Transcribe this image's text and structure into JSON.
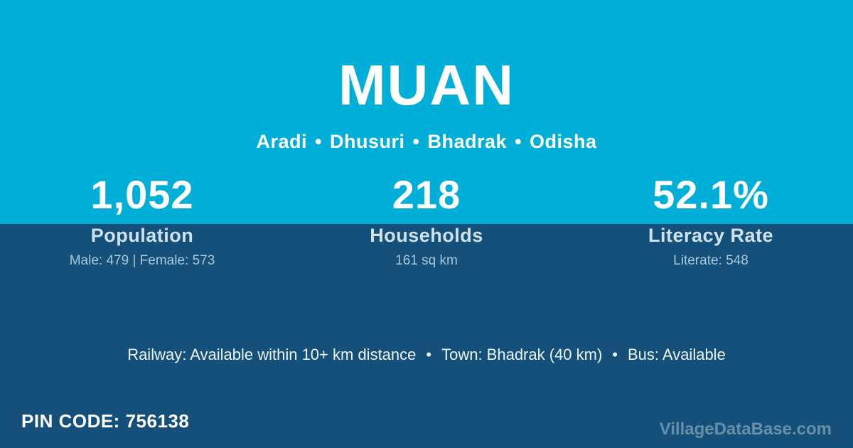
{
  "header": {
    "title": "MUAN",
    "location_parts": [
      "Aradi",
      "Dhusuri",
      "Bhadrak",
      "Odisha"
    ],
    "separator": "•"
  },
  "stats": [
    {
      "value": "1,052",
      "label": "Population",
      "detail": "Male: 479 | Female: 573"
    },
    {
      "value": "218",
      "label": "Households",
      "detail": "161 sq km"
    },
    {
      "value": "52.1%",
      "label": "Literacy Rate",
      "detail": "Literate: 548"
    }
  ],
  "transport": {
    "items": [
      "Railway: Available within 10+ km distance",
      "Town: Bhadrak (40 km)",
      "Bus: Available"
    ],
    "separator": "•"
  },
  "footer": {
    "pin_label": "PIN CODE:",
    "pin_value": "756138",
    "watermark": "VillageDataBase.com"
  },
  "colors": {
    "top_background": "#00afd8",
    "bottom_background": "#14507a",
    "text_primary": "#ffffff",
    "text_secondary": "#cfe2ee",
    "text_muted": "#a9c7da"
  }
}
